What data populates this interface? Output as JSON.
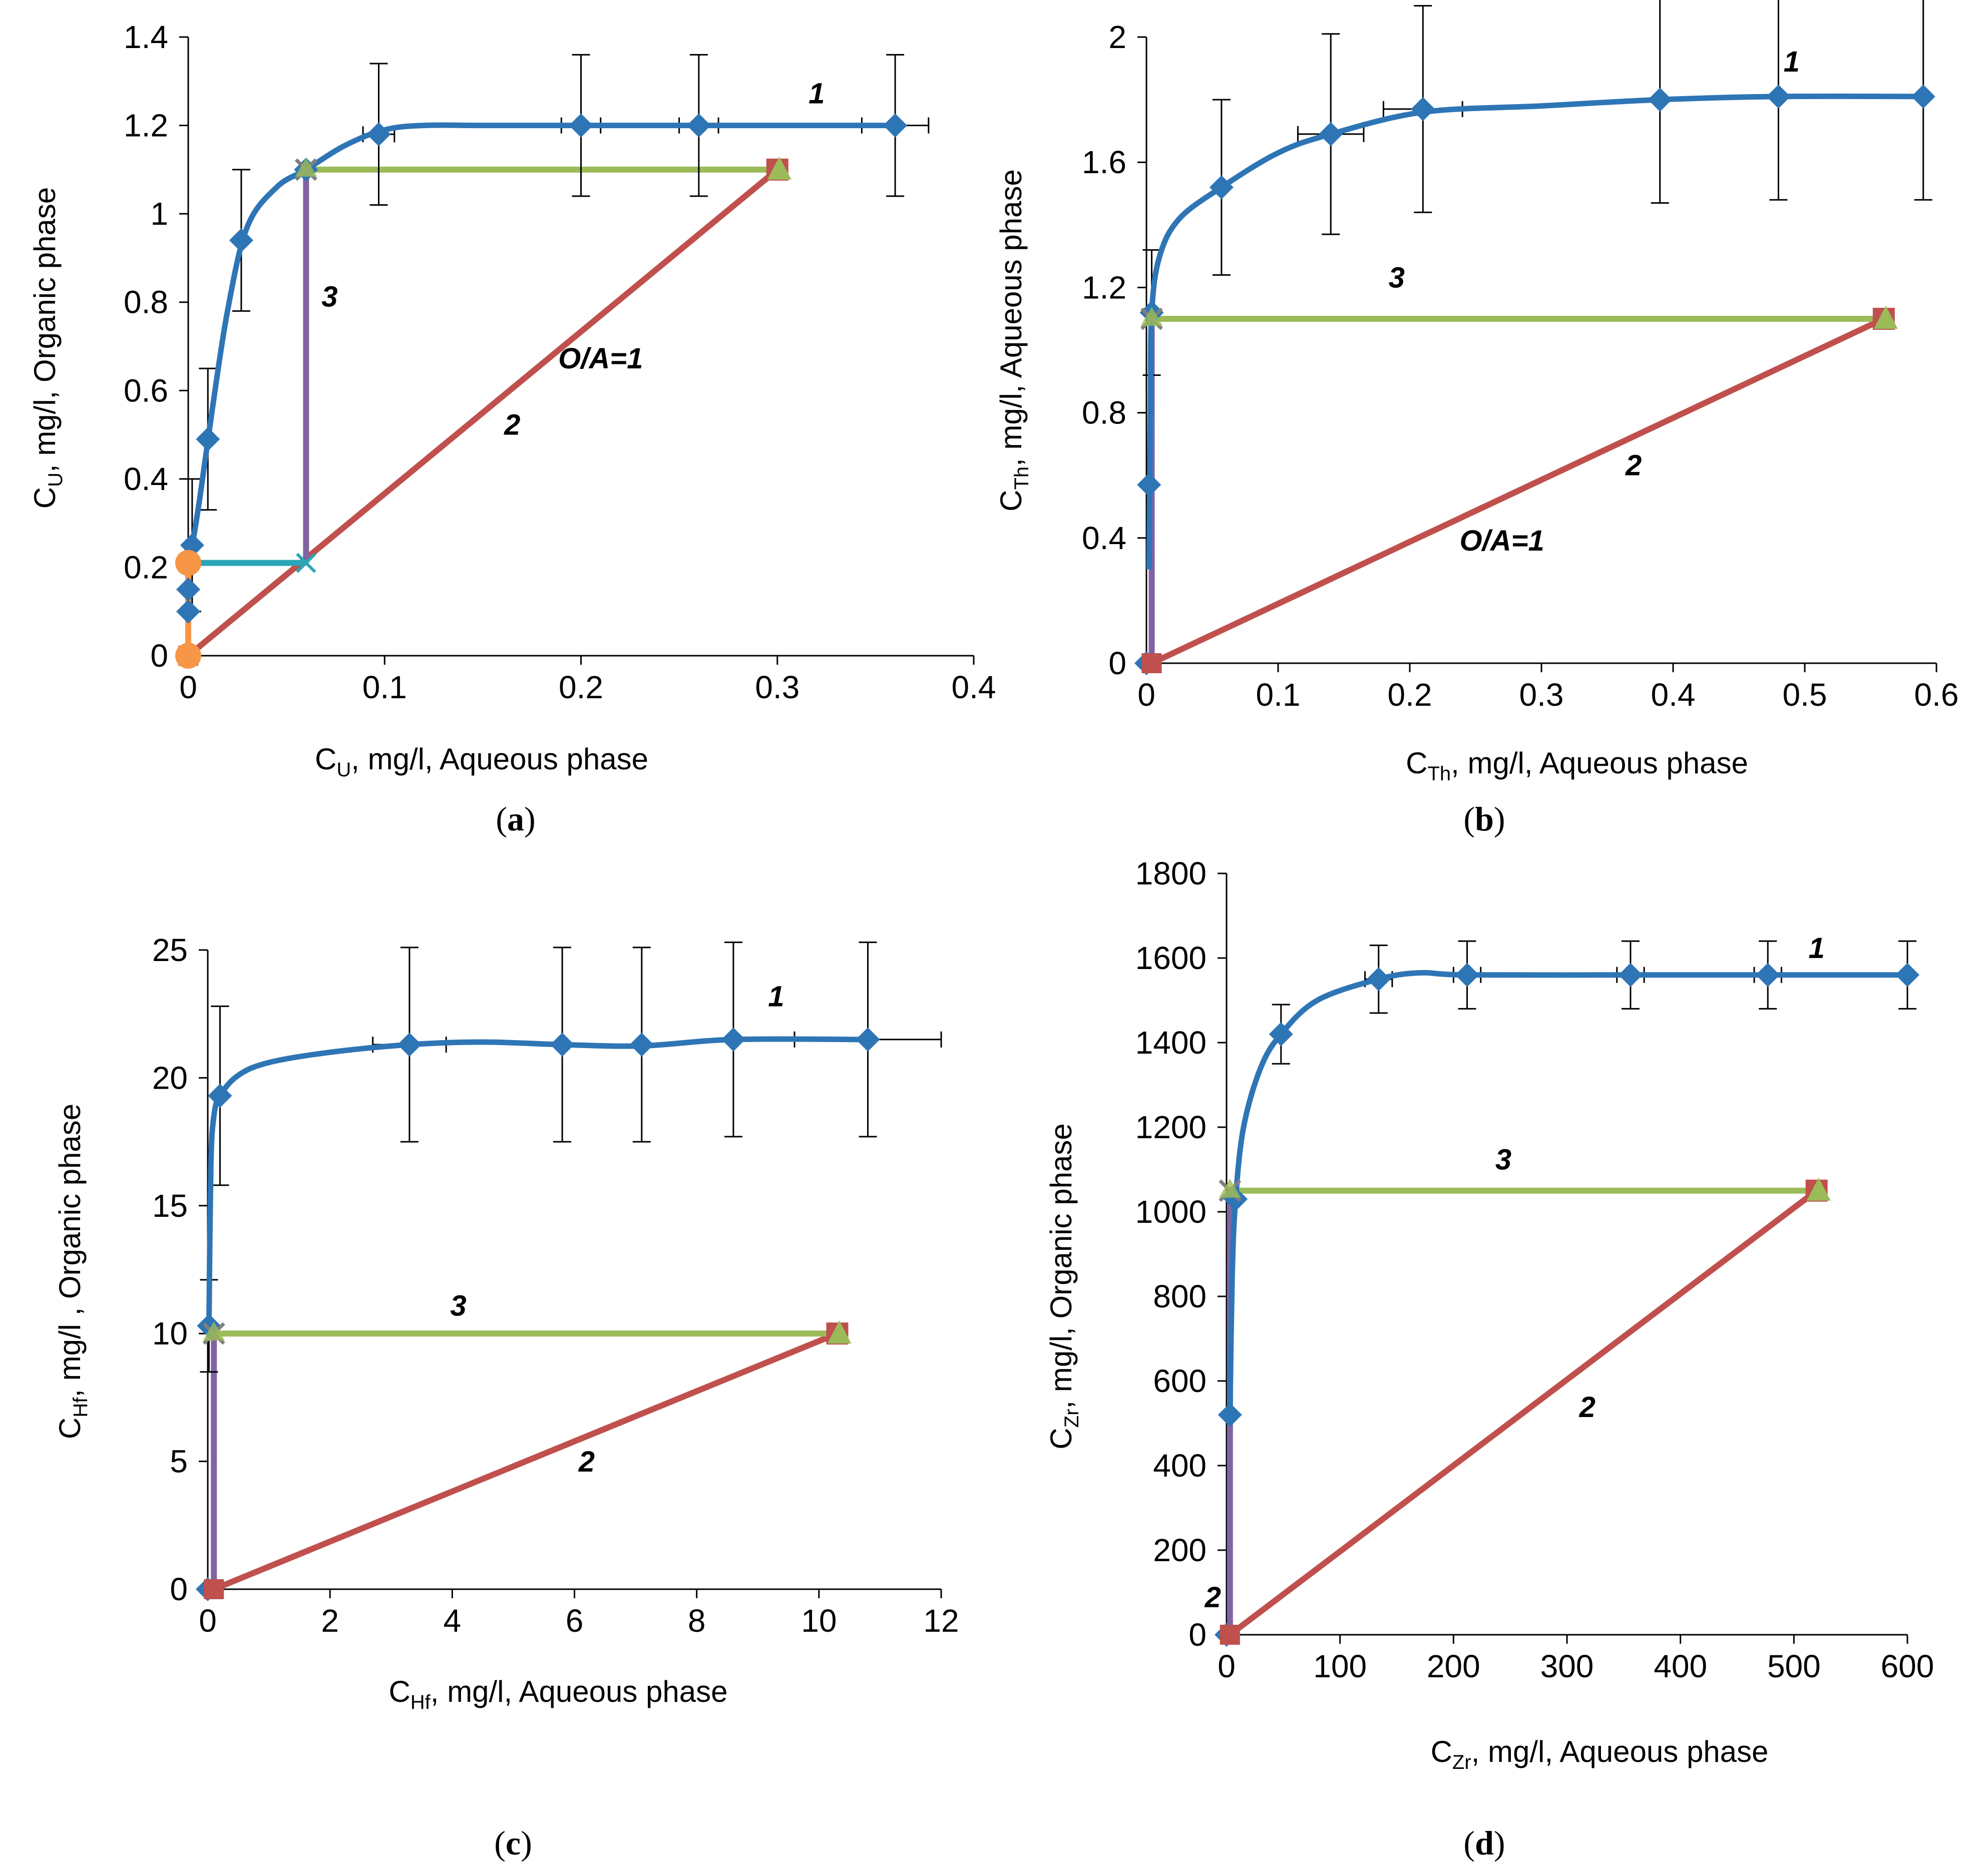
{
  "colors": {
    "isotherm": "#2e75b6",
    "operating_line": "#c0504d",
    "horizontal_step": "#9bbb59",
    "vertical_step": "#8064a2",
    "cyan_step": "#2aa6b8",
    "orange_step": "#f79646",
    "errbar": "#000000",
    "triangle_marker": "#9bbb59",
    "square_marker": "#c0504d",
    "cross_marker": "#7f7f7f"
  },
  "chart_data": [
    {
      "id": "a",
      "type": "line",
      "panel_label": "a",
      "xlabel_prefix": "C",
      "xlabel_sub": "U",
      "xlabel_rest": ", mg/l, Aqueous phase",
      "ylabel_prefix": "C",
      "ylabel_sub": "U",
      "ylabel_rest": ", mg/l, Organic phase",
      "xlim": [
        0,
        0.4
      ],
      "ylim": [
        0,
        1.4
      ],
      "xticks": [
        0,
        0.1,
        0.2,
        0.3,
        0.4
      ],
      "xtick_labels": [
        "0",
        "0.1",
        "0.2",
        "0.3",
        "0.4"
      ],
      "yticks": [
        0,
        0.2,
        0.4,
        0.6,
        0.8,
        1,
        1.2,
        1.4
      ],
      "ytick_labels": [
        "0",
        "0.2",
        "0.4",
        "0.6",
        "0.8",
        "1",
        "1.2",
        "1.4"
      ],
      "series": [
        {
          "name": "1",
          "role": "isotherm",
          "x": [
            0,
            0,
            0,
            0,
            0.002,
            0.01,
            0.027,
            0.06,
            0.097,
            0.2,
            0.26,
            0.36
          ],
          "y": [
            0,
            0.1,
            0.15,
            0.22,
            0.25,
            0.49,
            0.94,
            1.1,
            1.18,
            1.2,
            1.2,
            1.2
          ],
          "y_err": [
            0,
            0,
            0,
            0,
            0.15,
            0.16,
            0.16,
            0,
            0.16,
            0.16,
            0.16,
            0.16
          ],
          "x_err": [
            0,
            0,
            0,
            0,
            0,
            0,
            0,
            0,
            0.008,
            0.01,
            0.01,
            0.017
          ],
          "smooth_curve": {
            "x": [
              0,
              0.002,
              0.006,
              0.012,
              0.02,
              0.03,
              0.045,
              0.06,
              0.08,
              0.1,
              0.12,
              0.15,
              0.2,
              0.26,
              0.36
            ],
            "y": [
              0.22,
              0.25,
              0.36,
              0.55,
              0.78,
              0.97,
              1.06,
              1.1,
              1.155,
              1.19,
              1.2,
              1.2,
              1.2,
              1.2,
              1.2
            ]
          }
        },
        {
          "name": "2",
          "role": "operating_line",
          "x": [
            0,
            0.3
          ],
          "y": [
            0,
            1.1
          ]
        },
        {
          "name": "3",
          "role": "horizontal_step",
          "x": [
            0.06,
            0.3
          ],
          "y": [
            1.1,
            1.1
          ]
        },
        {
          "name": "3v",
          "role": "vertical_step",
          "x": [
            0.06,
            0.06
          ],
          "y": [
            0.21,
            1.1
          ]
        },
        {
          "name": "cyan",
          "role": "cyan_step",
          "x": [
            0,
            0.06
          ],
          "y": [
            0.21,
            0.21
          ]
        },
        {
          "name": "orange",
          "role": "orange_step",
          "x": [
            0,
            0
          ],
          "y": [
            0,
            0.21
          ]
        }
      ],
      "labels": [
        {
          "text": "1",
          "x": 0.32,
          "y": 1.25
        },
        {
          "text": "2",
          "x": 0.165,
          "y": 0.5
        },
        {
          "text": "3",
          "x": 0.072,
          "y": 0.79
        },
        {
          "text": "O/A=1",
          "x": 0.21,
          "y": 0.65
        }
      ]
    },
    {
      "id": "b",
      "type": "line",
      "panel_label": "b",
      "xlabel_prefix": "C",
      "xlabel_sub": "Th",
      "xlabel_rest": ", mg/l, Aqueous phase",
      "ylabel_prefix": "C",
      "ylabel_sub": "Th",
      "ylabel_rest": ", mg/l, Aqueous phase",
      "xlim": [
        0,
        0.6
      ],
      "ylim": [
        0,
        2
      ],
      "xticks": [
        0,
        0.1,
        0.2,
        0.3,
        0.4,
        0.5,
        0.6
      ],
      "xtick_labels": [
        "0",
        "0.1",
        "0.2",
        "0.3",
        "0.4",
        "0.5",
        "0.6"
      ],
      "yticks": [
        0,
        0.4,
        0.8,
        1.2,
        1.6,
        2
      ],
      "ytick_labels": [
        "0",
        "0.4",
        "0.8",
        "1.2",
        "1.6",
        "2"
      ],
      "series": [
        {
          "name": "1",
          "role": "isotherm",
          "x": [
            0,
            0.002,
            0.004,
            0.057,
            0.14,
            0.21,
            0.39,
            0.48,
            0.59
          ],
          "y": [
            0,
            0.57,
            1.12,
            1.52,
            1.69,
            1.77,
            1.8,
            1.81,
            1.81
          ],
          "y_err": [
            0,
            0,
            0.2,
            0.28,
            0.32,
            0.33,
            0.33,
            0.33,
            0.33
          ],
          "x_err": [
            0,
            0,
            0,
            0,
            0.025,
            0.03,
            0,
            0,
            0
          ],
          "smooth_curve": {
            "x": [
              0.002,
              0.003,
              0.004,
              0.01,
              0.025,
              0.057,
              0.1,
              0.14,
              0.21,
              0.3,
              0.39,
              0.48,
              0.59
            ],
            "y": [
              0.3,
              0.8,
              1.12,
              1.3,
              1.42,
              1.52,
              1.63,
              1.69,
              1.76,
              1.78,
              1.8,
              1.81,
              1.81
            ]
          }
        },
        {
          "name": "2",
          "role": "operating_line",
          "x": [
            0.004,
            0.56
          ],
          "y": [
            0,
            1.1
          ]
        },
        {
          "name": "3",
          "role": "horizontal_step",
          "x": [
            0.004,
            0.56
          ],
          "y": [
            1.1,
            1.1
          ]
        },
        {
          "name": "3v",
          "role": "vertical_step",
          "x": [
            0.004,
            0.004
          ],
          "y": [
            0,
            1.1
          ]
        }
      ],
      "labels": [
        {
          "text": "1",
          "x": 0.49,
          "y": 1.89
        },
        {
          "text": "2",
          "x": 0.37,
          "y": 0.6
        },
        {
          "text": "3",
          "x": 0.19,
          "y": 1.2
        },
        {
          "text": "O/A=1",
          "x": 0.27,
          "y": 0.36
        }
      ]
    },
    {
      "id": "c",
      "type": "line",
      "panel_label": "c",
      "xlabel_prefix": "C",
      "xlabel_sub": "Hf",
      "xlabel_rest": ", mg/l, Aqueous phase",
      "ylabel_prefix": "C",
      "ylabel_sub": "Hf",
      "ylabel_rest": ", mg/l , Organic phase",
      "xlim": [
        0,
        12
      ],
      "ylim": [
        0,
        25
      ],
      "xticks": [
        0,
        2,
        4,
        6,
        8,
        10,
        12
      ],
      "xtick_labels": [
        "0",
        "2",
        "4",
        "6",
        "8",
        "10",
        "12"
      ],
      "yticks": [
        0,
        5,
        10,
        15,
        20,
        25
      ],
      "ytick_labels": [
        "0",
        "5",
        "10",
        "15",
        "20",
        "25"
      ],
      "series": [
        {
          "name": "1",
          "role": "isotherm",
          "x": [
            0,
            0.02,
            0.2,
            3.3,
            5.8,
            7.1,
            8.6,
            10.8
          ],
          "y": [
            0,
            10.3,
            19.3,
            21.3,
            21.3,
            21.3,
            21.5,
            21.5
          ],
          "y_err": [
            0,
            1.8,
            3.5,
            3.8,
            3.8,
            3.8,
            3.8,
            3.8
          ],
          "x_err": [
            0,
            0,
            0,
            0.6,
            0,
            0,
            0,
            1.2
          ],
          "smooth_curve": {
            "x": [
              0.02,
              0.05,
              0.1,
              0.2,
              0.5,
              1,
              2,
              3.3,
              4.5,
              5.8,
              7.1,
              8.6,
              10.8
            ],
            "y": [
              10.3,
              16.5,
              18.5,
              19.3,
              20.1,
              20.6,
              21.0,
              21.3,
              21.4,
              21.3,
              21.25,
              21.5,
              21.5
            ]
          }
        },
        {
          "name": "2",
          "role": "operating_line",
          "x": [
            0.1,
            10.3
          ],
          "y": [
            0,
            10
          ]
        },
        {
          "name": "3",
          "role": "horizontal_step",
          "x": [
            0.1,
            10.3
          ],
          "y": [
            10,
            10
          ]
        },
        {
          "name": "3v",
          "role": "vertical_step",
          "x": [
            0.1,
            0.1
          ],
          "y": [
            0,
            10
          ]
        }
      ],
      "labels": [
        {
          "text": "1",
          "x": 9.3,
          "y": 22.8
        },
        {
          "text": "2",
          "x": 6.2,
          "y": 4.6
        },
        {
          "text": "3",
          "x": 4.1,
          "y": 10.7
        }
      ]
    },
    {
      "id": "d",
      "type": "line",
      "panel_label": "d",
      "xlabel_prefix": "C",
      "xlabel_sub": "Zr",
      "xlabel_rest": ", mg/l, Aqueous phase",
      "ylabel_prefix": "C",
      "ylabel_sub": "Zr",
      "ylabel_rest": ", mg/l, Organic phase",
      "xlim": [
        0,
        600
      ],
      "ylim": [
        0,
        1800
      ],
      "xticks": [
        0,
        100,
        200,
        300,
        400,
        500,
        600
      ],
      "xtick_labels": [
        "0",
        "100",
        "200",
        "300",
        "400",
        "500",
        "600"
      ],
      "yticks": [
        0,
        200,
        400,
        600,
        800,
        1000,
        1200,
        1400,
        1600,
        1800
      ],
      "ytick_labels": [
        "0",
        "200",
        "400",
        "600",
        "800",
        "1000",
        "1200",
        "1400",
        "1600",
        "1800"
      ],
      "series": [
        {
          "name": "1",
          "role": "isotherm",
          "x": [
            0,
            3,
            8,
            48,
            134,
            212,
            356,
            477,
            600
          ],
          "y": [
            0,
            520,
            1030,
            1420,
            1550,
            1560,
            1560,
            1560,
            1560
          ],
          "y_err": [
            0,
            0,
            0,
            70,
            80,
            80,
            80,
            80,
            80
          ],
          "x_err": [
            0,
            0,
            0,
            0,
            12,
            12,
            12,
            12,
            0
          ],
          "smooth_curve": {
            "x": [
              3,
              5,
              8,
              15,
              30,
              48,
              80,
              134,
              170,
              212,
              356,
              477,
              600
            ],
            "y": [
              520,
              850,
              1030,
              1200,
              1340,
              1420,
              1500,
              1550,
              1565,
              1560,
              1560,
              1560,
              1560
            ]
          }
        },
        {
          "name": "2",
          "role": "operating_line",
          "x": [
            3,
            520
          ],
          "y": [
            0,
            1050
          ]
        },
        {
          "name": "3",
          "role": "horizontal_step",
          "x": [
            3,
            520
          ],
          "y": [
            1050,
            1050
          ]
        },
        {
          "name": "3v",
          "role": "vertical_step",
          "x": [
            3,
            3
          ],
          "y": [
            0,
            1050
          ]
        }
      ],
      "labels": [
        {
          "text": "1",
          "x": 520,
          "y": 1600
        },
        {
          "text": "2",
          "x": 318,
          "y": 515
        },
        {
          "text": "3",
          "x": 244,
          "y": 1100
        },
        {
          "text": "2",
          "x": -12,
          "y": 65
        }
      ]
    }
  ]
}
